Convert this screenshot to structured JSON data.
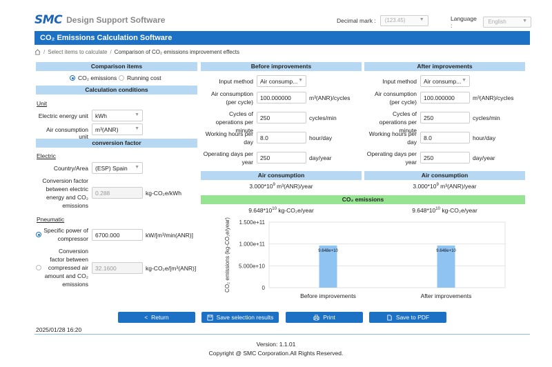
{
  "header": {
    "logo": "SMC",
    "app_name": "Design Support Software",
    "decimal_label": "Decimal mark :",
    "decimal_value": "(123.45)",
    "language_label": "Language :",
    "language_value": "English"
  },
  "title": "CO₂ Emissions Calculation Software",
  "breadcrumb": {
    "item1": "Select items to calculate",
    "sep": "/",
    "current": "Comparison of CO₂ emissions improvement effects"
  },
  "left": {
    "comparison_head": "Comparison items",
    "radio_co2": "CO₂ emissions",
    "radio_running": "Running cost",
    "calc_head": "Calculation conditions",
    "unit_title": "Unit",
    "elec_unit_label": "Electric energy unit",
    "elec_unit_value": "kWh",
    "air_unit_label": "Air consumption unit",
    "air_unit_value": "m³(ANR)",
    "conv_head": "conversion factor",
    "electric_title": "Electric",
    "country_label": "Country/Area",
    "country_value": "(ESP) Spain",
    "conv_elec_label": "Conversion factor between electric energy and CO₂ emissions",
    "conv_elec_value": "0.288",
    "conv_elec_unit": "kg-CO₂e/kWh",
    "pneumatic_title": "Pneumatic",
    "specific_power_label": "Specific power of compressor",
    "specific_power_value": "6700.000",
    "specific_power_unit": "kW/[m³/min(ANR)]",
    "conv_air_label": "Conversion factor between compressed air amount and CO₂ emissions",
    "conv_air_value": "32.1600",
    "conv_air_unit": "kg-CO₂e/[m³(ANR)]"
  },
  "before": {
    "head": "Before improvements",
    "input_method_label": "Input method",
    "input_method_value": "Air consump...",
    "air_cons_label": "Air consumption (per cycle)",
    "air_cons_value": "100.000000",
    "air_cons_unit": "m³(ANR)/cycles",
    "cycles_label": "Cycles of operations per minute",
    "cycles_value": "250",
    "cycles_unit": "cycles/min",
    "hours_label": "Working hours per day",
    "hours_value": "8.0",
    "hours_unit": "hour/day",
    "days_label": "Operating days per year",
    "days_value": "250",
    "days_unit": "day/year",
    "air_result_head": "Air consumption",
    "air_result_mant": "3.000*10",
    "air_result_exp": "9",
    "air_result_unit": "m³(ANR)/year",
    "co2_mant": "9.648*10",
    "co2_exp": "10",
    "co2_unit": "kg-CO₂e/year"
  },
  "after": {
    "head": "After improvements",
    "input_method_label": "Input method",
    "input_method_value": "Air consump...",
    "air_cons_label": "Air consumption (per cycle)",
    "air_cons_value": "100.000000",
    "air_cons_unit": "m³(ANR)/cycles",
    "cycles_label": "Cycles of operations per minute",
    "cycles_value": "250",
    "cycles_unit": "cycles/min",
    "hours_label": "Working hours per day",
    "hours_value": "8.0",
    "hours_unit": "hour/day",
    "days_label": "Operating days per year",
    "days_value": "250",
    "days_unit": "day/year",
    "air_result_head": "Air consumption",
    "air_result_mant": "3.000*10",
    "air_result_exp": "9",
    "air_result_unit": "m³(ANR)/year",
    "co2_mant": "9.648*10",
    "co2_exp": "10",
    "co2_unit": "kg-CO₂e/year"
  },
  "co2_head": "CO₂ emissions",
  "chart_data": {
    "type": "bar",
    "categories": [
      "Before improvements",
      "After improvements"
    ],
    "values": [
      96480000000,
      96480000000
    ],
    "value_labels": [
      "9.648e+10",
      "9.648e+10"
    ],
    "ylabel": "CO₂ emissions (kg-CO₂e/year)",
    "ylim": [
      0,
      150000000000
    ],
    "yticks": [
      0,
      50000000000,
      100000000000,
      150000000000
    ],
    "ytick_labels": [
      "0",
      "5.000e+10",
      "1.000e+11",
      "1.500e+11"
    ],
    "bar_color": "#8ec3f2",
    "grid": true
  },
  "buttons": {
    "return": "Return",
    "save": "Save selection results",
    "print": "Print",
    "pdf": "Save to PDF"
  },
  "timestamp": "2025/01/28 16:20",
  "footer": {
    "version": "Version: 1.1.01",
    "copyright": "Copyright @ SMC Corporation.All Rights Reserved."
  },
  "colors": {
    "primary": "#1d71c4",
    "section_head": "#b6d8f2",
    "co2_head": "#96e391"
  }
}
